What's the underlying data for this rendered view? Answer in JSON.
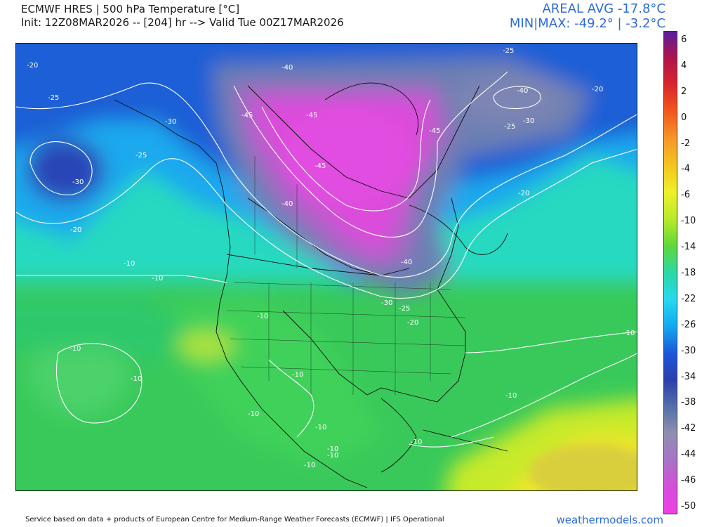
{
  "header": {
    "title": "ECMWF HRES | 500 hPa Temperature [°C]",
    "init_line": "Init: 12Z08MAR2026 -- [204] hr --> Valid Tue 00Z17MAR2026",
    "areal_avg": "AREAL AVG -17.8°C",
    "minmax": "MIN|MAX: -49.2° | -3.2°C"
  },
  "colorbar": {
    "ticks": [
      "6",
      "4",
      "2",
      "0",
      "-2",
      "-4",
      "-6",
      "-10",
      "-14",
      "-18",
      "-22",
      "-26",
      "-30",
      "-34",
      "-38",
      "-42",
      "-44",
      "-46",
      "-50"
    ],
    "colors": [
      "#5a1fa0",
      "#b0134a",
      "#d9262e",
      "#f2581e",
      "#f7962a",
      "#f4c51e",
      "#eef02a",
      "#b7ea2a",
      "#5fd83a",
      "#2bd8a6",
      "#27d9ee",
      "#12a9f2",
      "#1b57d8",
      "#2c3fae",
      "#546ea7",
      "#8e8fb1",
      "#a873c6",
      "#d44fd9",
      "#f13fe6"
    ]
  },
  "contour_labels": [
    {
      "text": "-20"
    },
    {
      "text": "-25"
    },
    {
      "text": "-30"
    },
    {
      "text": "-25"
    },
    {
      "text": "-30"
    },
    {
      "text": "-20"
    },
    {
      "text": "-40"
    },
    {
      "text": "-45"
    },
    {
      "text": "-45"
    },
    {
      "text": "-45"
    },
    {
      "text": "-45"
    },
    {
      "text": "-40"
    },
    {
      "text": "-40"
    },
    {
      "text": "-25"
    },
    {
      "text": "-40"
    },
    {
      "text": "-20"
    },
    {
      "text": "-30"
    },
    {
      "text": "-25"
    },
    {
      "text": "-20"
    },
    {
      "text": "-10"
    },
    {
      "text": "-10"
    },
    {
      "text": "-10"
    },
    {
      "text": "-30"
    },
    {
      "text": "-25"
    },
    {
      "text": "-20"
    },
    {
      "text": "-10"
    },
    {
      "text": "-10"
    },
    {
      "text": "-10"
    },
    {
      "text": "-10"
    },
    {
      "text": "-10"
    },
    {
      "text": "-10"
    },
    {
      "text": "-10"
    },
    {
      "text": "-10"
    },
    {
      "text": "-10"
    },
    {
      "text": "-10"
    },
    {
      "text": "-10"
    }
  ],
  "footer": {
    "credit": "Service based on data + products of European Centre for Medium-Range Weather Forecasts (ECMWF) | IFS Operational",
    "site": "weathermodels.com"
  }
}
